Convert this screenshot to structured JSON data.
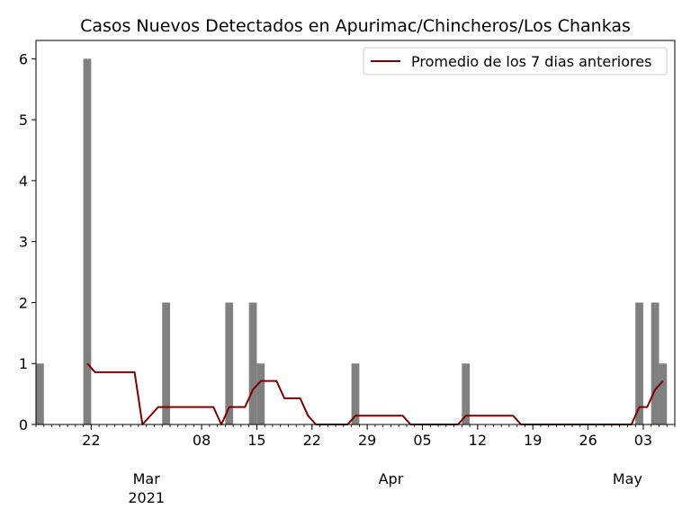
{
  "chart_data": {
    "type": "bar",
    "title": "Casos Nuevos Detectados en Apurimac/Chincheros/Los Chankas",
    "xlabel": "",
    "ylabel": "",
    "x_range": [
      "2021-02-15",
      "2021-05-07"
    ],
    "ylim": [
      0,
      6.3
    ],
    "y_ticks": [
      0,
      1,
      2,
      3,
      4,
      5,
      6
    ],
    "x_ticks": [
      {
        "date": "2021-02-22",
        "label": "22"
      },
      {
        "date": "2021-03-08",
        "label": "08"
      },
      {
        "date": "2021-03-15",
        "label": "15"
      },
      {
        "date": "2021-03-22",
        "label": "22"
      },
      {
        "date": "2021-03-29",
        "label": "29"
      },
      {
        "date": "2021-04-05",
        "label": "05"
      },
      {
        "date": "2021-04-12",
        "label": "12"
      },
      {
        "date": "2021-04-19",
        "label": "19"
      },
      {
        "date": "2021-04-26",
        "label": "26"
      },
      {
        "date": "2021-05-03",
        "label": "03"
      }
    ],
    "month_labels": [
      {
        "date": "2021-03-01",
        "label": "Mar",
        "sublabel": "2021"
      },
      {
        "date": "2021-04-01",
        "label": "Apr",
        "sublabel": ""
      },
      {
        "date": "2021-05-01",
        "label": "May",
        "sublabel": ""
      }
    ],
    "grid": false,
    "legend_position": "top-right",
    "bar_color": "#808080",
    "line_color": "#800000",
    "bars": [
      {
        "date": "2021-02-15",
        "value": 1
      },
      {
        "date": "2021-02-21",
        "value": 6
      },
      {
        "date": "2021-03-03",
        "value": 2
      },
      {
        "date": "2021-03-11",
        "value": 2
      },
      {
        "date": "2021-03-14",
        "value": 2
      },
      {
        "date": "2021-03-15",
        "value": 1
      },
      {
        "date": "2021-03-27",
        "value": 1
      },
      {
        "date": "2021-04-10",
        "value": 1
      },
      {
        "date": "2021-05-02",
        "value": 2
      },
      {
        "date": "2021-05-04",
        "value": 2
      },
      {
        "date": "2021-05-05",
        "value": 1
      }
    ],
    "series": [
      {
        "name": "Promedio de los 7 dias anteriores",
        "type": "line",
        "points": [
          {
            "date": "2021-02-21",
            "value": 1.0
          },
          {
            "date": "2021-02-22",
            "value": 0.857
          },
          {
            "date": "2021-02-27",
            "value": 0.857
          },
          {
            "date": "2021-02-28",
            "value": 0.0
          },
          {
            "date": "2021-03-02",
            "value": 0.286
          },
          {
            "date": "2021-03-09",
            "value": 0.286
          },
          {
            "date": "2021-03-10",
            "value": 0.0
          },
          {
            "date": "2021-03-11",
            "value": 0.286
          },
          {
            "date": "2021-03-13",
            "value": 0.286
          },
          {
            "date": "2021-03-14",
            "value": 0.571
          },
          {
            "date": "2021-03-15",
            "value": 0.714
          },
          {
            "date": "2021-03-17",
            "value": 0.714
          },
          {
            "date": "2021-03-18",
            "value": 0.429
          },
          {
            "date": "2021-03-20",
            "value": 0.429
          },
          {
            "date": "2021-03-21",
            "value": 0.143
          },
          {
            "date": "2021-03-22",
            "value": 0.0
          },
          {
            "date": "2021-03-26",
            "value": 0.0
          },
          {
            "date": "2021-03-27",
            "value": 0.143
          },
          {
            "date": "2021-04-02",
            "value": 0.143
          },
          {
            "date": "2021-04-03",
            "value": 0.0
          },
          {
            "date": "2021-04-09",
            "value": 0.0
          },
          {
            "date": "2021-04-10",
            "value": 0.143
          },
          {
            "date": "2021-04-16",
            "value": 0.143
          },
          {
            "date": "2021-04-17",
            "value": 0.0
          },
          {
            "date": "2021-05-01",
            "value": 0.0
          },
          {
            "date": "2021-05-02",
            "value": 0.286
          },
          {
            "date": "2021-05-03",
            "value": 0.286
          },
          {
            "date": "2021-05-04",
            "value": 0.571
          },
          {
            "date": "2021-05-05",
            "value": 0.714
          }
        ]
      }
    ]
  }
}
